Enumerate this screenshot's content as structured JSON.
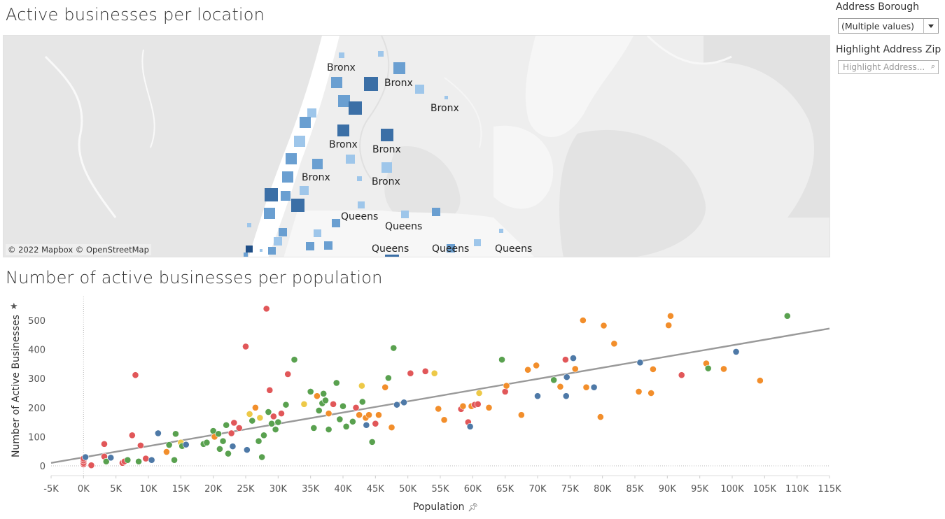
{
  "map_section": {
    "title": "Active businesses per location",
    "credit": "© 2022 Mapbox © OpenStreetMap",
    "labels": [
      "Bronx",
      "Bronx",
      "Bronx",
      "Bronx",
      "Bronx",
      "Bronx",
      "Bronx",
      "Queens",
      "Queens",
      "Queens",
      "Queens",
      "Queens"
    ],
    "marker_colors": {
      "light": "#9ec6ea",
      "mid": "#6a9fd1",
      "dark": "#3b6fa6",
      "darkest": "#1f4e86"
    }
  },
  "filters": {
    "borough_label": "Address Borough",
    "borough_value": "(Multiple values)",
    "zip_label": "Highlight Address Zip",
    "zip_placeholder": "Highlight Address..."
  },
  "scatter_section": {
    "title": "Number of active businesses per population"
  },
  "chart_data": {
    "type": "scatter",
    "title": "Number of active businesses per population",
    "xlabel": "Population",
    "ylabel": "Number of Active Businesses",
    "xlim": [
      -5000,
      115000
    ],
    "ylim": [
      0,
      550
    ],
    "x_ticks": [
      "-5K",
      "0K",
      "5K",
      "10K",
      "15K",
      "20K",
      "25K",
      "30K",
      "35K",
      "40K",
      "45K",
      "50K",
      "55K",
      "60K",
      "65K",
      "70K",
      "75K",
      "80K",
      "85K",
      "90K",
      "95K",
      "100K",
      "105K",
      "110K",
      "115K"
    ],
    "y_ticks": [
      "0",
      "100",
      "200",
      "300",
      "400",
      "500"
    ],
    "trend_line": {
      "x": [
        -5000,
        115000
      ],
      "y": [
        10,
        472
      ]
    },
    "grid": false,
    "colors": {
      "blue": "#4e79a7",
      "orange": "#f28e2b",
      "red": "#e15759",
      "green": "#59a14f",
      "yellow": "#edc948"
    },
    "points": [
      [
        0,
        5,
        "red"
      ],
      [
        0,
        10,
        "red"
      ],
      [
        0,
        18,
        "red"
      ],
      [
        0,
        25,
        "red"
      ],
      [
        300,
        30,
        "blue"
      ],
      [
        1200,
        2,
        "red"
      ],
      [
        3200,
        75,
        "red"
      ],
      [
        3200,
        32,
        "red"
      ],
      [
        3500,
        15,
        "green"
      ],
      [
        4200,
        28,
        "blue"
      ],
      [
        6000,
        10,
        "red"
      ],
      [
        6300,
        15,
        "red"
      ],
      [
        6800,
        20,
        "green"
      ],
      [
        7500,
        105,
        "red"
      ],
      [
        8000,
        312,
        "red"
      ],
      [
        8500,
        15,
        "green"
      ],
      [
        8800,
        70,
        "red"
      ],
      [
        9600,
        25,
        "red"
      ],
      [
        10500,
        20,
        "blue"
      ],
      [
        11500,
        112,
        "blue"
      ],
      [
        12800,
        48,
        "orange"
      ],
      [
        13200,
        72,
        "green"
      ],
      [
        14000,
        20,
        "green"
      ],
      [
        14200,
        110,
        "green"
      ],
      [
        15000,
        80,
        "yellow"
      ],
      [
        15200,
        68,
        "green"
      ],
      [
        15800,
        73,
        "blue"
      ],
      [
        18500,
        75,
        "green"
      ],
      [
        19000,
        80,
        "green"
      ],
      [
        20000,
        120,
        "green"
      ],
      [
        20200,
        100,
        "orange"
      ],
      [
        20800,
        110,
        "green"
      ],
      [
        21000,
        58,
        "green"
      ],
      [
        21500,
        85,
        "green"
      ],
      [
        22000,
        140,
        "green"
      ],
      [
        22300,
        42,
        "green"
      ],
      [
        22800,
        112,
        "red"
      ],
      [
        23000,
        67,
        "blue"
      ],
      [
        23200,
        148,
        "red"
      ],
      [
        24000,
        130,
        "red"
      ],
      [
        25000,
        410,
        "red"
      ],
      [
        25200,
        55,
        "blue"
      ],
      [
        25600,
        178,
        "yellow"
      ],
      [
        26000,
        155,
        "green"
      ],
      [
        26500,
        200,
        "orange"
      ],
      [
        27000,
        85,
        "green"
      ],
      [
        27200,
        165,
        "yellow"
      ],
      [
        27500,
        30,
        "green"
      ],
      [
        27800,
        105,
        "green"
      ],
      [
        28200,
        540,
        "red"
      ],
      [
        28500,
        185,
        "green"
      ],
      [
        28700,
        260,
        "red"
      ],
      [
        29000,
        145,
        "green"
      ],
      [
        29300,
        170,
        "red"
      ],
      [
        29600,
        125,
        "green"
      ],
      [
        30000,
        150,
        "green"
      ],
      [
        30500,
        180,
        "red"
      ],
      [
        31200,
        210,
        "green"
      ],
      [
        31500,
        315,
        "red"
      ],
      [
        32500,
        365,
        "green"
      ],
      [
        34000,
        212,
        "yellow"
      ],
      [
        35000,
        255,
        "green"
      ],
      [
        35500,
        130,
        "green"
      ],
      [
        36000,
        240,
        "orange"
      ],
      [
        36300,
        190,
        "green"
      ],
      [
        36800,
        215,
        "green"
      ],
      [
        37000,
        248,
        "green"
      ],
      [
        37300,
        225,
        "green"
      ],
      [
        37800,
        180,
        "orange"
      ],
      [
        37800,
        125,
        "green"
      ],
      [
        38500,
        212,
        "red"
      ],
      [
        39000,
        285,
        "green"
      ],
      [
        39500,
        160,
        "green"
      ],
      [
        40000,
        205,
        "green"
      ],
      [
        40500,
        135,
        "green"
      ],
      [
        41500,
        152,
        "green"
      ],
      [
        42000,
        200,
        "red"
      ],
      [
        42500,
        175,
        "orange"
      ],
      [
        42900,
        275,
        "yellow"
      ],
      [
        43000,
        220,
        "green"
      ],
      [
        43500,
        165,
        "orange"
      ],
      [
        43600,
        140,
        "blue"
      ],
      [
        44000,
        175,
        "orange"
      ],
      [
        44500,
        82,
        "green"
      ],
      [
        45000,
        145,
        "red"
      ],
      [
        45500,
        175,
        "orange"
      ],
      [
        46500,
        270,
        "orange"
      ],
      [
        47000,
        302,
        "green"
      ],
      [
        47500,
        132,
        "orange"
      ],
      [
        47800,
        405,
        "green"
      ],
      [
        48300,
        210,
        "blue"
      ],
      [
        49400,
        218,
        "blue"
      ],
      [
        50400,
        318,
        "red"
      ],
      [
        52700,
        325,
        "red"
      ],
      [
        54100,
        318,
        "yellow"
      ],
      [
        54700,
        196,
        "orange"
      ],
      [
        55600,
        158,
        "orange"
      ],
      [
        58200,
        195,
        "red"
      ],
      [
        58500,
        205,
        "orange"
      ],
      [
        59300,
        150,
        "red"
      ],
      [
        59600,
        135,
        "blue"
      ],
      [
        59800,
        205,
        "orange"
      ],
      [
        60300,
        210,
        "red"
      ],
      [
        60800,
        212,
        "red"
      ],
      [
        61000,
        250,
        "yellow"
      ],
      [
        62500,
        200,
        "orange"
      ],
      [
        64500,
        365,
        "green"
      ],
      [
        65000,
        255,
        "red"
      ],
      [
        65200,
        275,
        "orange"
      ],
      [
        67500,
        175,
        "orange"
      ],
      [
        68500,
        330,
        "orange"
      ],
      [
        69800,
        345,
        "orange"
      ],
      [
        70000,
        240,
        "blue"
      ],
      [
        72500,
        295,
        "green"
      ],
      [
        73500,
        272,
        "orange"
      ],
      [
        74300,
        365,
        "red"
      ],
      [
        74400,
        240,
        "blue"
      ],
      [
        74500,
        305,
        "blue"
      ],
      [
        75500,
        370,
        "blue"
      ],
      [
        75800,
        333,
        "orange"
      ],
      [
        77000,
        500,
        "orange"
      ],
      [
        77500,
        270,
        "orange"
      ],
      [
        78700,
        270,
        "blue"
      ],
      [
        79700,
        168,
        "orange"
      ],
      [
        80200,
        482,
        "orange"
      ],
      [
        81800,
        420,
        "orange"
      ],
      [
        85600,
        255,
        "orange"
      ],
      [
        85800,
        355,
        "blue"
      ],
      [
        87500,
        250,
        "orange"
      ],
      [
        87800,
        332,
        "orange"
      ],
      [
        90200,
        483,
        "orange"
      ],
      [
        90500,
        515,
        "orange"
      ],
      [
        92200,
        312,
        "red"
      ],
      [
        96000,
        352,
        "orange"
      ],
      [
        96300,
        335,
        "green"
      ],
      [
        98700,
        333,
        "orange"
      ],
      [
        100600,
        392,
        "blue"
      ],
      [
        104300,
        293,
        "orange"
      ],
      [
        108500,
        515,
        "green"
      ]
    ]
  }
}
